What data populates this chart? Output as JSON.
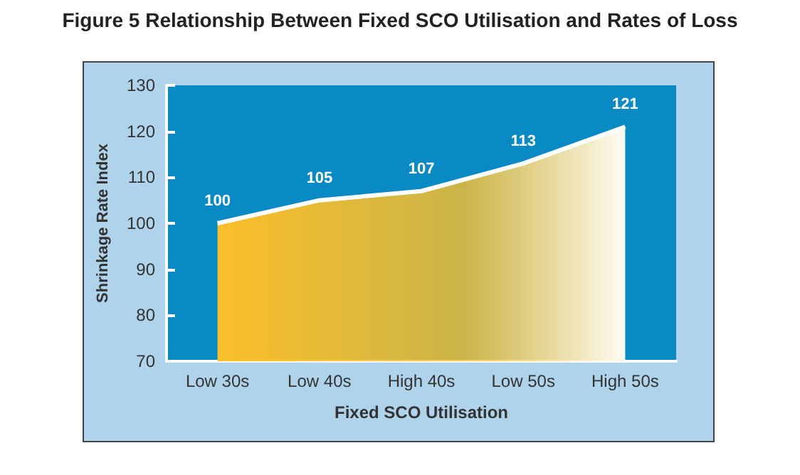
{
  "chart_data": {
    "type": "area",
    "title": "Figure 5 Relationship Between Fixed SCO Utilisation and Rates of Loss",
    "xlabel": "Fixed SCO Utilisation",
    "ylabel": "Shrinkage Rate Index",
    "categories": [
      "Low 30s",
      "Low 40s",
      "High 40s",
      "Low 50s",
      "High 50s"
    ],
    "values": [
      100,
      105,
      107,
      113,
      121
    ],
    "color": "#fbbf2a",
    "ylim": [
      70,
      130
    ],
    "yticks": [
      70,
      80,
      90,
      100,
      110,
      120,
      130
    ],
    "grid": false,
    "data_labels": true
  }
}
